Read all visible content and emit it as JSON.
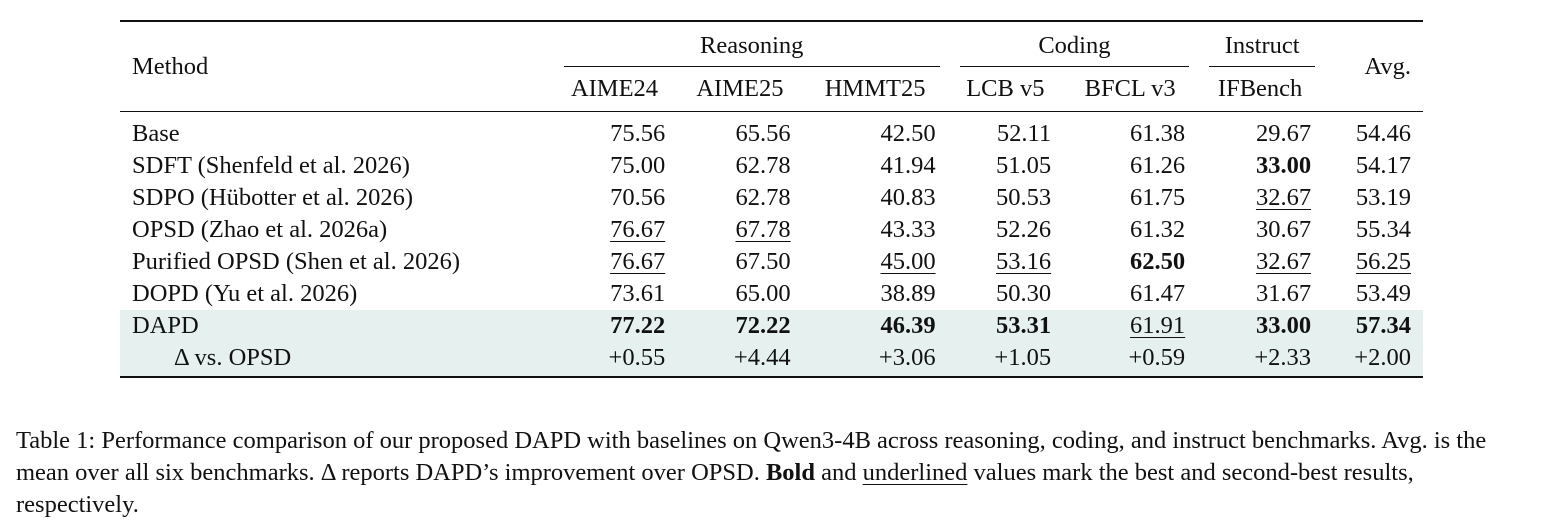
{
  "table": {
    "method_header": "Method",
    "groups": [
      {
        "label": "Reasoning",
        "span": 3
      },
      {
        "label": "Coding",
        "span": 2
      },
      {
        "label": "Instruct",
        "span": 1
      }
    ],
    "avg_header": "Avg.",
    "columns": [
      "AIME24",
      "AIME25",
      "HMMT25",
      "LCB v5",
      "BFCL v3",
      "IFBench"
    ],
    "rows": [
      {
        "method": "Base",
        "values": [
          "75.56",
          "65.56",
          "42.50",
          "52.11",
          "61.38",
          "29.67"
        ],
        "avg": "54.46",
        "bold": [],
        "underline": []
      },
      {
        "method": "SDFT (Shenfeld et al. 2026)",
        "values": [
          "75.00",
          "62.78",
          "41.94",
          "51.05",
          "61.26",
          "33.00"
        ],
        "avg": "54.17",
        "bold": [
          5
        ],
        "underline": []
      },
      {
        "method": "SDPO (Hübotter et al. 2026)",
        "values": [
          "70.56",
          "62.78",
          "40.83",
          "50.53",
          "61.75",
          "32.67"
        ],
        "avg": "53.19",
        "bold": [],
        "underline": [
          5
        ]
      },
      {
        "method": "OPSD (Zhao et al. 2026a)",
        "values": [
          "76.67",
          "67.78",
          "43.33",
          "52.26",
          "61.32",
          "30.67"
        ],
        "avg": "55.34",
        "bold": [],
        "underline": [
          0,
          1
        ]
      },
      {
        "method": "Purified OPSD (Shen et al. 2026)",
        "values": [
          "76.67",
          "67.50",
          "45.00",
          "53.16",
          "62.50",
          "32.67"
        ],
        "avg": "56.25",
        "bold": [
          4
        ],
        "underline": [
          0,
          2,
          3,
          5,
          6
        ]
      },
      {
        "method": "DOPD (Yu et al. 2026)",
        "values": [
          "73.61",
          "65.00",
          "38.89",
          "50.30",
          "61.47",
          "31.67"
        ],
        "avg": "53.49",
        "bold": [],
        "underline": []
      },
      {
        "method": "DAPD",
        "values": [
          "77.22",
          "72.22",
          "46.39",
          "53.31",
          "61.91",
          "33.00"
        ],
        "avg": "57.34",
        "bold": [
          0,
          1,
          2,
          3,
          5,
          6
        ],
        "underline": [
          4
        ],
        "highlight": true
      }
    ],
    "delta_row": {
      "method": "Δ vs. OPSD",
      "values": [
        "+0.55",
        "+4.44",
        "+3.06",
        "+1.05",
        "+0.59",
        "+2.33"
      ],
      "avg": "+2.00",
      "highlight": true
    },
    "highlight_color": "#e6f1ef"
  },
  "caption": {
    "part1": "Table 1: Performance comparison of our proposed DAPD with baselines on Qwen3-4B across reasoning, coding, and instruct benchmarks. Avg. is the mean over all six benchmarks. Δ reports DAPD’s improvement over OPSD. ",
    "bold_word": "Bold",
    "part2": " and ",
    "underline_word": "underlined",
    "part3": " values mark the best and second-best results, respectively."
  }
}
